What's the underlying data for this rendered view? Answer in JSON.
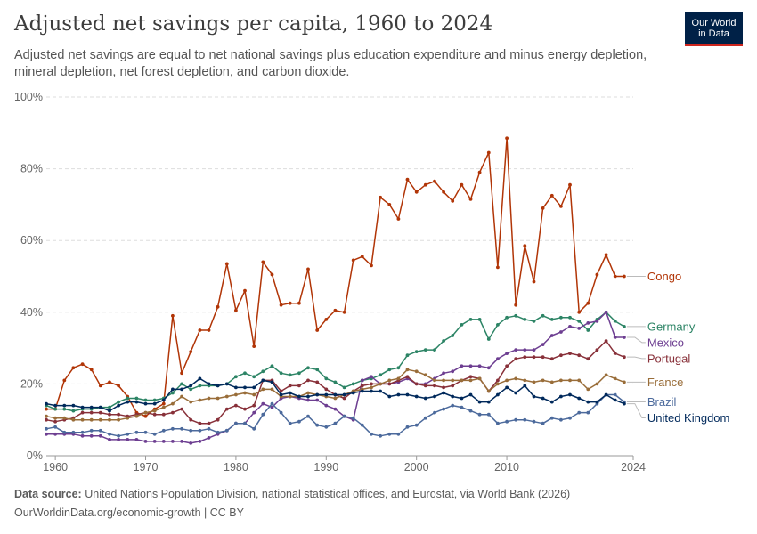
{
  "header": {
    "title": "Adjusted net savings per capita, 1960 to 2024",
    "subtitle": "Adjusted net savings are equal to net national savings plus education expenditure and minus energy depletion, mineral depletion, net forest depletion, and carbon dioxide.",
    "logo_line1": "Our World",
    "logo_line2": "in Data"
  },
  "footer": {
    "source_label": "Data source:",
    "source_text": "United Nations Population Division, national statistical offices, and Eurostat, via World Bank (2026)",
    "url_text": "OurWorldinData.org/economic-growth | CC BY"
  },
  "colors": {
    "Congo": "#b13507",
    "Germany": "#2c8465",
    "Mexico": "#6d3e91",
    "Portugal": "#883039",
    "France": "#996d39",
    "Brazil": "#4c6a9c",
    "United Kingdom": "#00295b",
    "grid": "#dddddd"
  },
  "chart_data": {
    "type": "line",
    "title": "Adjusted net savings per capita, 1960 to 2024",
    "xlabel": "",
    "ylabel": "",
    "xlim": [
      1960,
      2024
    ],
    "ylim": [
      0,
      100
    ],
    "y_ticks": [
      "0%",
      "20%",
      "40%",
      "60%",
      "80%",
      "100%"
    ],
    "x_ticks": [
      "1960",
      "1970",
      "1980",
      "1990",
      "2000",
      "2010",
      "2024"
    ],
    "grid": "horizontal dashed",
    "legend": "right end labels",
    "start_year": 1959,
    "series": [
      {
        "name": "Congo",
        "label": "Congo",
        "values": [
          13,
          13,
          21,
          24.5,
          25.5,
          24,
          19.5,
          20.5,
          19.5,
          16.5,
          12,
          11,
          13,
          14.5,
          39,
          23,
          29,
          35,
          35,
          41.5,
          53.5,
          40.5,
          46,
          30.5,
          54,
          50.5,
          42,
          42.5,
          42.5,
          52,
          35,
          38,
          40.5,
          40,
          54.5,
          55.5,
          53,
          72,
          70,
          66,
          77,
          73.5,
          75.5,
          76.5,
          73.5,
          71,
          75.5,
          71.5,
          79,
          84.5,
          52.5,
          88.5,
          42,
          58.5,
          48.5,
          69,
          72.5,
          69.5,
          75.5,
          40,
          42.5,
          50.5,
          56,
          50,
          50
        ]
      },
      {
        "name": "Germany",
        "label": "Germany",
        "values": [
          14,
          13,
          13,
          12.5,
          13,
          13,
          13.5,
          13.5,
          15,
          16,
          16,
          15.5,
          15.5,
          16,
          17.5,
          20,
          18.5,
          19.5,
          19.5,
          19.5,
          20,
          22,
          23,
          22,
          23.5,
          25,
          23,
          22.5,
          23,
          24.5,
          24,
          21.5,
          20.5,
          19,
          20,
          21,
          21.5,
          22.5,
          24,
          24.5,
          28,
          29,
          29.5,
          29.5,
          32,
          33.5,
          36.5,
          38,
          38,
          32.5,
          36.5,
          38.5,
          39,
          38,
          37.5,
          39,
          38,
          38.5,
          38.5,
          37.5,
          35,
          38,
          40,
          37.5,
          36
        ]
      },
      {
        "name": "Mexico",
        "label": "Mexico",
        "values": [
          6,
          6,
          6,
          6,
          5.5,
          5.5,
          5.5,
          4.5,
          4.5,
          4.5,
          4.5,
          4,
          4,
          4,
          4,
          4,
          3.5,
          4,
          5,
          6,
          7,
          9,
          9,
          12,
          14.5,
          13.5,
          16,
          16.5,
          16,
          15.5,
          15.5,
          14,
          13,
          11,
          10,
          21,
          22,
          20,
          20,
          20.5,
          21.5,
          20,
          20,
          21.5,
          23,
          23.5,
          25,
          25,
          25,
          24.5,
          27,
          28.5,
          29.5,
          29.5,
          29.5,
          31,
          33.5,
          34.5,
          36,
          35.5,
          37,
          37.5,
          40,
          33,
          33
        ]
      },
      {
        "name": "Portugal",
        "label": "Portugal",
        "values": [
          10,
          9.5,
          10,
          10.5,
          12,
          12,
          12,
          11.5,
          11.5,
          11,
          11.5,
          12,
          11.5,
          11.5,
          12,
          13,
          10,
          9,
          9,
          10,
          13,
          14,
          13,
          14,
          21,
          21,
          18,
          19.5,
          19.5,
          21,
          20.5,
          18.5,
          17,
          16,
          18,
          19.5,
          20,
          20,
          20,
          21,
          22,
          20,
          19.5,
          19.5,
          19,
          19.5,
          21,
          22,
          21.5,
          18,
          21,
          25,
          27,
          27.5,
          27.5,
          27.5,
          27,
          28,
          28.5,
          28,
          27,
          29.5,
          32,
          28.5,
          27.5
        ]
      },
      {
        "name": "France",
        "label": "France",
        "values": [
          11,
          10.5,
          10.5,
          10,
          10,
          10,
          10,
          10,
          10,
          10.5,
          11,
          12,
          12.5,
          13.5,
          14.5,
          16.5,
          15,
          15.5,
          16,
          16,
          16.5,
          17,
          17.5,
          17,
          18.5,
          18.5,
          16.5,
          16.5,
          16.5,
          17.5,
          17,
          16.5,
          16,
          17,
          18,
          18.5,
          19,
          20,
          21,
          21.5,
          24,
          23.5,
          22.5,
          21,
          21,
          21,
          21,
          21,
          21.5,
          18,
          20,
          21,
          21.5,
          21,
          20.5,
          21,
          20.5,
          21,
          21,
          21,
          18.5,
          20,
          22.5,
          21.5,
          20.5
        ]
      },
      {
        "name": "Brazil",
        "label": "Brazil",
        "values": [
          7.5,
          8,
          6.5,
          6.5,
          6.5,
          7,
          7,
          6,
          5.5,
          6,
          6.5,
          6.5,
          6,
          7,
          7.5,
          7.5,
          7,
          7,
          7.5,
          6.5,
          7,
          9,
          9,
          7.5,
          11.5,
          14.5,
          12,
          9,
          9.5,
          11,
          8.5,
          8,
          9,
          11,
          10.5,
          8.5,
          6,
          5.5,
          6,
          6,
          8,
          8.5,
          10.5,
          12,
          13,
          14,
          13.5,
          12.5,
          11.5,
          11.5,
          9,
          9.5,
          10,
          10,
          9.5,
          9,
          10.5,
          10,
          10.5,
          12,
          12,
          14.5,
          17,
          17,
          15
        ]
      },
      {
        "name": "United Kingdom",
        "label": "United Kingdom",
        "values": [
          14.5,
          14,
          14,
          14,
          13.5,
          13.5,
          13.5,
          12.5,
          14,
          15,
          15,
          14.5,
          14.5,
          15.5,
          18.5,
          18.5,
          19.5,
          21.5,
          20,
          19.5,
          20,
          19,
          19,
          19,
          21,
          20.5,
          17,
          17.5,
          16.5,
          16.5,
          17,
          17,
          17,
          17,
          17.5,
          18,
          18,
          18,
          16.5,
          17,
          17,
          16.5,
          16,
          16.5,
          17.5,
          16.5,
          16,
          17,
          15,
          15,
          17,
          19,
          17.5,
          19.5,
          16.5,
          16,
          15,
          16.5,
          17,
          16,
          15,
          15,
          17,
          15.5,
          14.5
        ]
      }
    ]
  }
}
